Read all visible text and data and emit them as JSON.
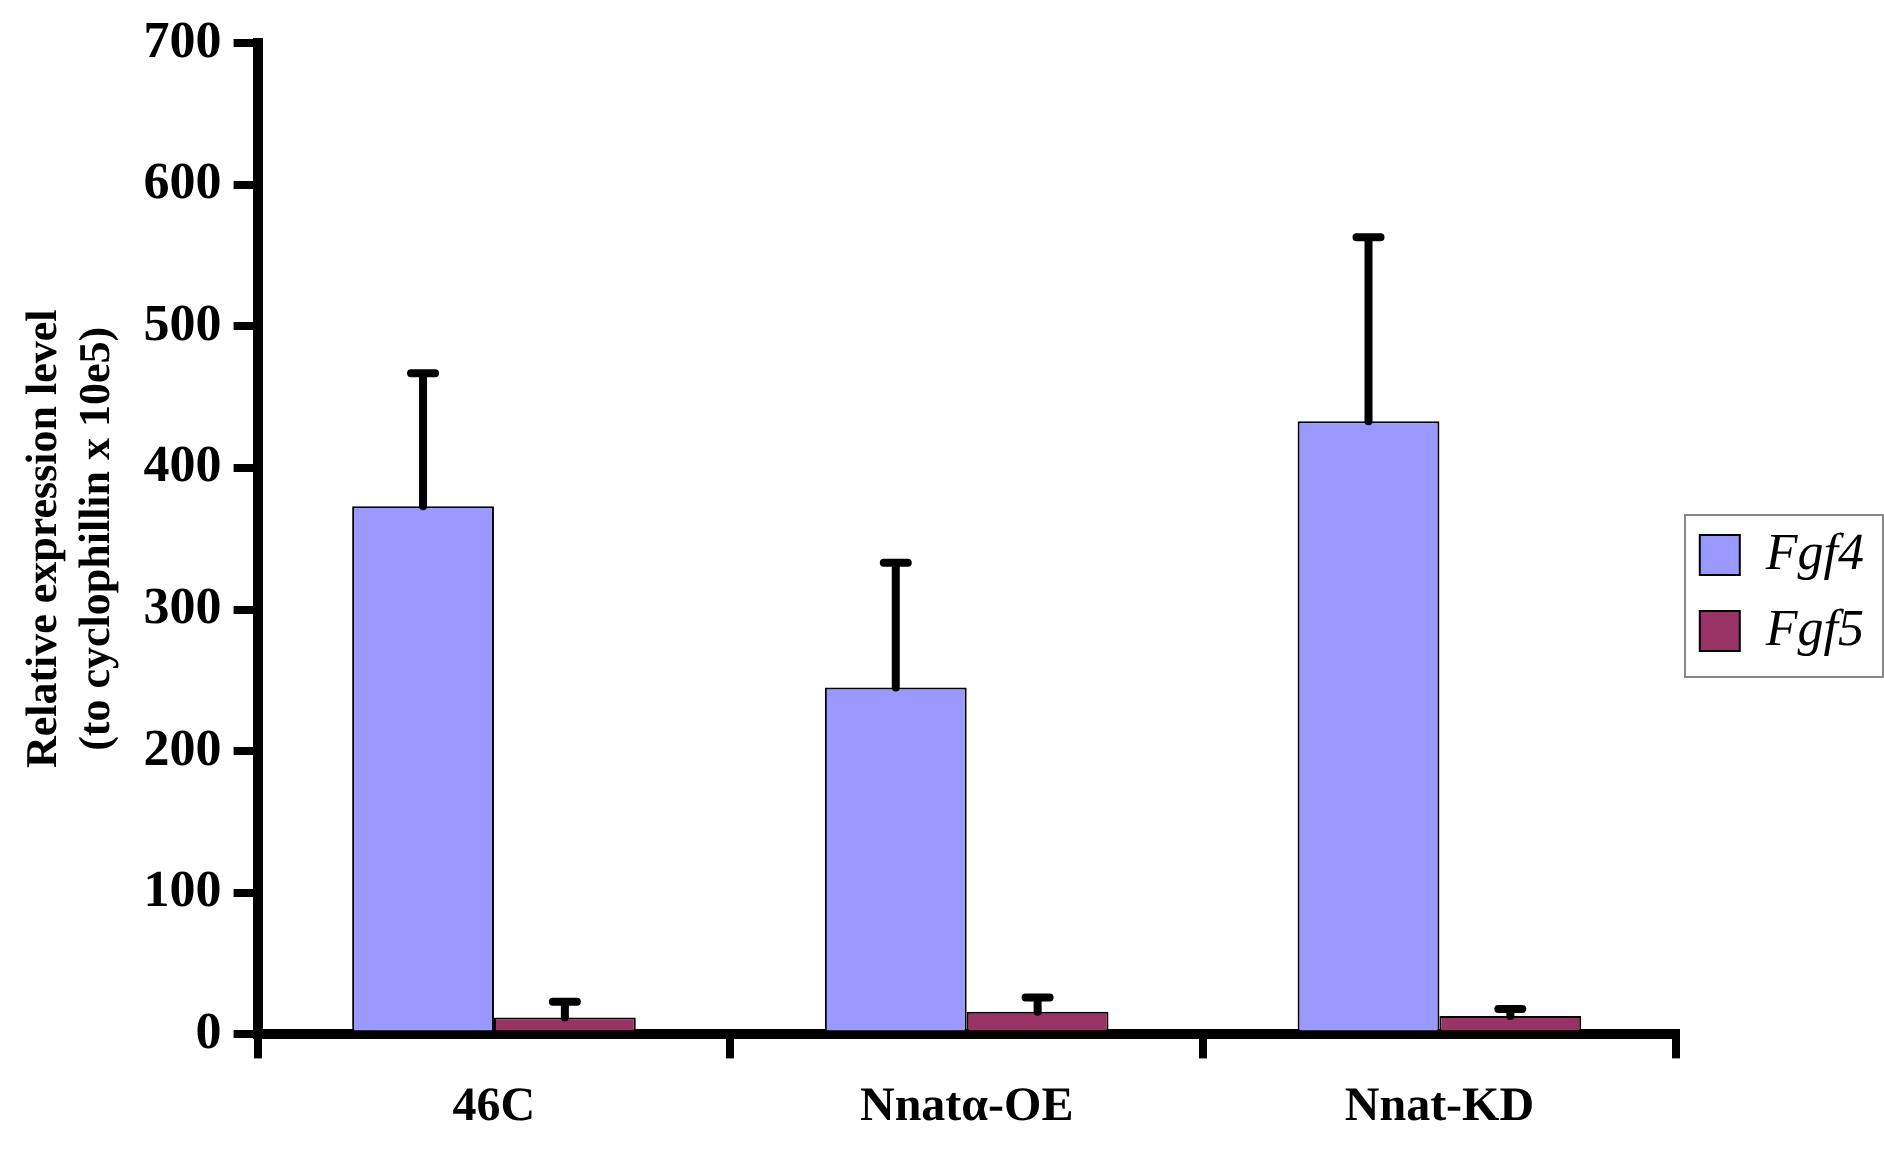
{
  "chart_data": {
    "type": "bar",
    "ylabel": "Relative expression level\n(to cyclophillin x 10e5)",
    "categories": [
      "46C",
      "Nnatα-OE",
      "Nnat-KD"
    ],
    "series": [
      {
        "name": "Fgf4",
        "color": "#9999ff",
        "values": [
          373,
          245,
          433
        ],
        "errors": [
          [
            373,
            467
          ],
          [
            245,
            333
          ],
          [
            433,
            563
          ]
        ]
      },
      {
        "name": "Fgf5",
        "color": "#993366",
        "values": [
          12,
          16,
          13
        ],
        "errors": [
          [
            12,
            23
          ],
          [
            16,
            26
          ],
          [
            13,
            18
          ]
        ]
      }
    ],
    "ylim": [
      0,
      700
    ],
    "yticks": [
      0,
      100,
      200,
      300,
      400,
      500,
      600,
      700
    ],
    "grid": false,
    "legend": "right"
  }
}
